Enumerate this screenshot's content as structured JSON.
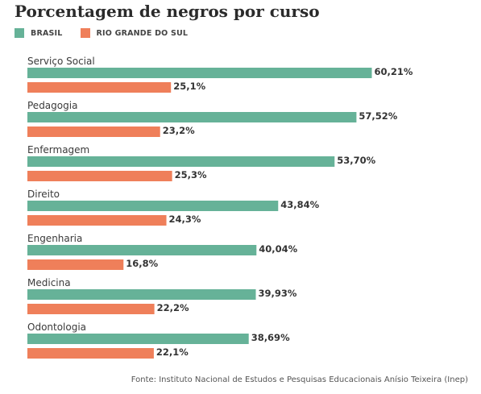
{
  "chart_data": {
    "type": "bar",
    "orientation": "horizontal",
    "title": "Porcentagem de negros por curso",
    "categories": [
      "Serviço Social",
      "Pedagogia",
      "Enfermagem",
      "Direito",
      "Engenharia",
      "Medicina",
      "Odontologia"
    ],
    "series": [
      {
        "name": "BRASIL",
        "color": "#66b298",
        "values": [
          60.21,
          57.52,
          53.7,
          43.84,
          40.04,
          39.93,
          38.69
        ],
        "labels": [
          "60,21%",
          "57,52%",
          "53,70%",
          "43,84%",
          "40,04%",
          "39,93%",
          "38,69%"
        ]
      },
      {
        "name": "RIO GRANDE DO SUL",
        "color": "#ef7f5a",
        "values": [
          25.1,
          23.2,
          25.3,
          24.3,
          16.8,
          22.2,
          22.1
        ],
        "labels": [
          "25,1%",
          "23,2%",
          "25,3%",
          "24,3%",
          "16,8%",
          "22,2%",
          "22,1%"
        ]
      }
    ],
    "xlim": [
      0,
      66
    ],
    "grid": false,
    "legend_position": "top-left",
    "source": "Fonte: Instituto Nacional de Estudos e Pesquisas Educacionais Anísio Teixeira (Inep)"
  }
}
